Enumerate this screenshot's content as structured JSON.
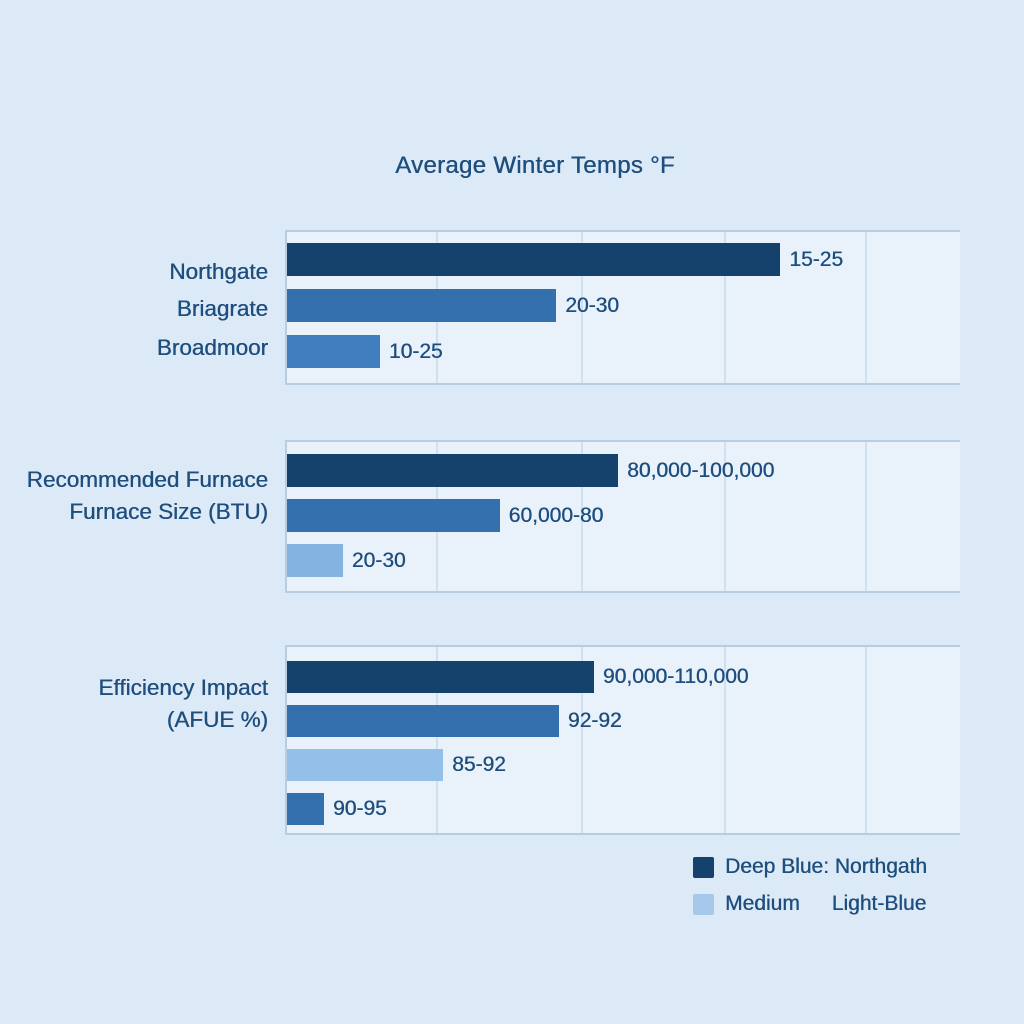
{
  "colors": {
    "deep": "#14426c",
    "medium": "#3370ad",
    "medium_light": "#3f7dbe",
    "light": "#84b3e2",
    "light2": "#93bfe8",
    "legend_light": "#a6c8ea",
    "text": "#1d4e7e",
    "page_bg": "#dce9f6",
    "plot_bg": "#e9f1fa",
    "border": "#b6cde2",
    "gridline": "#cfe0f0"
  },
  "chart_data": {
    "type": "bar",
    "orientation": "horizontal",
    "title": "Average Winter Temps °F",
    "grid": true,
    "axis_tick_labels": [],
    "sections": [
      {
        "left_labels": [
          "Northgate",
          "Briagrate",
          "Broadmoor"
        ],
        "bars": [
          {
            "label": "15-25",
            "color_key": "deep",
            "length_pct": 73.3
          },
          {
            "label": "20-30",
            "color_key": "medium",
            "length_pct": 40.0
          },
          {
            "label": "10-25",
            "color_key": "medium_light",
            "length_pct": 13.8
          }
        ]
      },
      {
        "left_labels": [
          "Recommended Furnace",
          "Furnace Size (BTU)"
        ],
        "bars": [
          {
            "label": "80,000-100,000",
            "color_key": "deep",
            "length_pct": 49.2
          },
          {
            "label": "60,000-80",
            "color_key": "medium",
            "length_pct": 31.6
          },
          {
            "label": "20-30",
            "color_key": "light",
            "length_pct": 8.3
          }
        ]
      },
      {
        "left_labels": [
          "Efficiency Impact",
          "(AFUE %)"
        ],
        "bars": [
          {
            "label": "90,000-110,000",
            "color_key": "deep",
            "length_pct": 45.6
          },
          {
            "label": "92-92",
            "color_key": "medium",
            "length_pct": 40.4
          },
          {
            "label": "85-92",
            "color_key": "light2",
            "length_pct": 23.2
          },
          {
            "label": "90-95",
            "color_key": "medium",
            "length_pct": 5.5
          }
        ]
      }
    ],
    "legend": {
      "rows": [
        {
          "swatch_color_key": "deep",
          "items": [
            "Deep Blue: Northgath"
          ]
        },
        {
          "swatch_color_key": "legend_light",
          "items": [
            "Medium",
            "Light-Blue"
          ]
        }
      ],
      "position": "bottom-right"
    }
  }
}
